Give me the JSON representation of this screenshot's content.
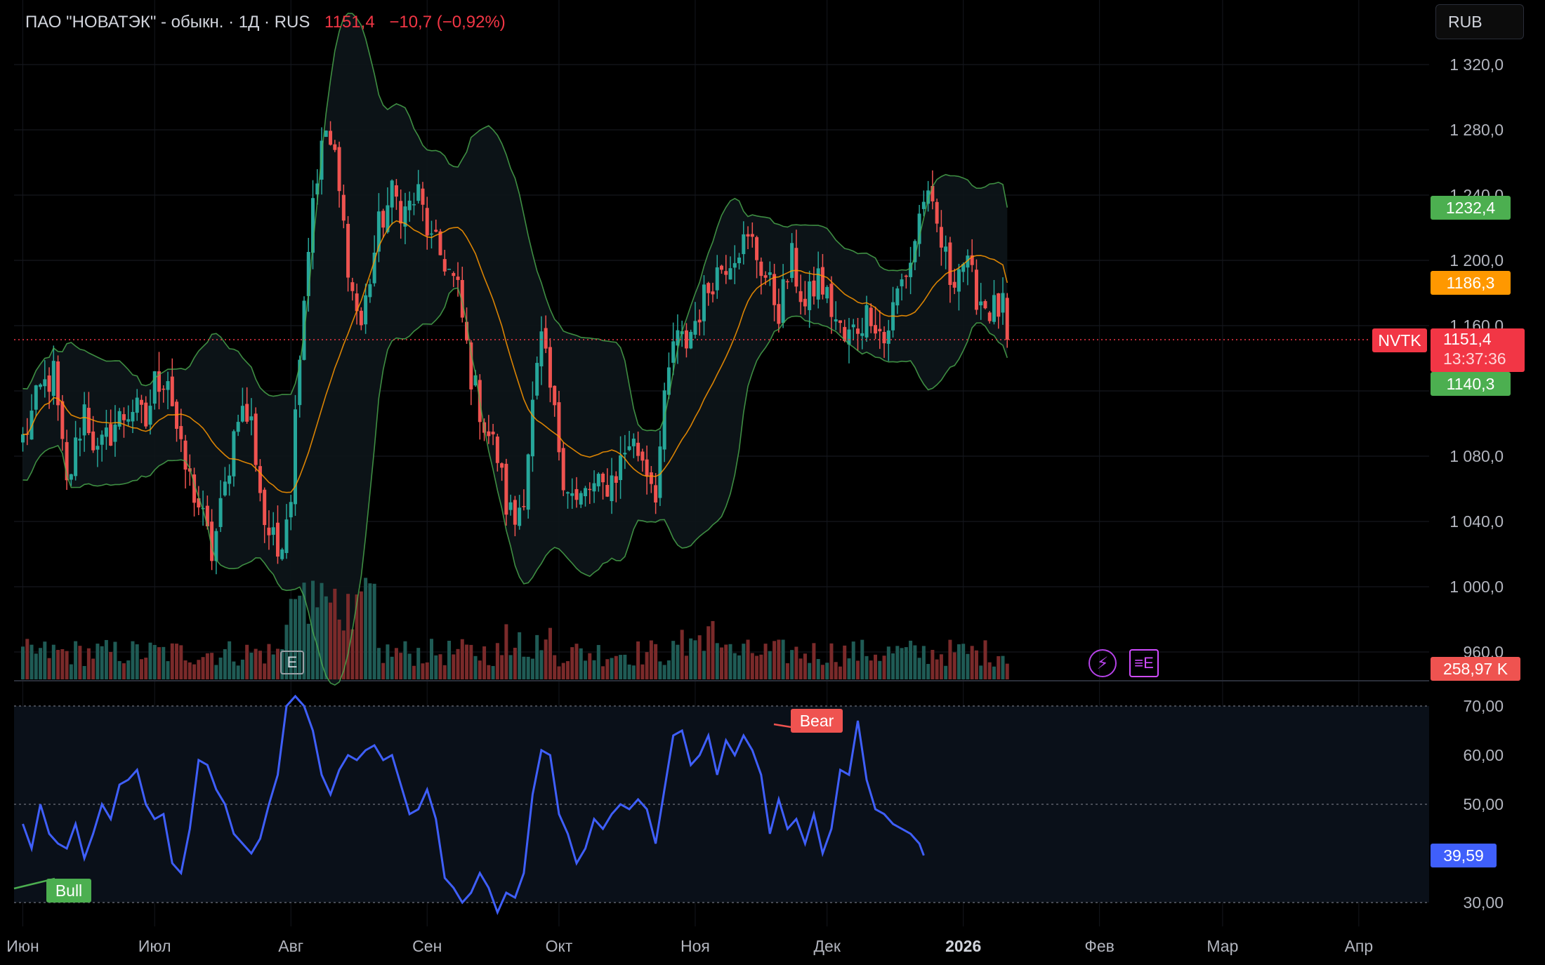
{
  "header": {
    "symbol": "ПАО \"НОВАТЭК\" - обыкн. · 1Д · RUS",
    "price": "1151,4",
    "change": "−10,7 (−0,92%)"
  },
  "currency_button": "RUB",
  "price_tags": {
    "ticker": "NVTK",
    "last": "1151,4",
    "countdown": "13:37:36",
    "bb_upper": "1232,4",
    "sma": "1186,3",
    "bb_lower": "1140,3",
    "volume": "258,97 K",
    "rsi": "39,59"
  },
  "markers": {
    "bull": "Bull",
    "bear": "Bear",
    "earnings": "E"
  },
  "colors": {
    "up": "#26a69a",
    "down": "#ef5350",
    "bb_line": "#4caf50",
    "sma": "#ff9800",
    "rsi": "#3f5ffb",
    "last_price": "#f23645"
  },
  "chart_data": [
    {
      "type": "candlestick",
      "title": "ПАО \"НОВАТЭК\" - обыкн. · 1Д · RUS",
      "y_ticks": [
        1320,
        1280,
        1240,
        1200,
        1160,
        1080,
        1040,
        1000,
        960
      ],
      "y_tick_labels": [
        "1 320,0",
        "1 280,0",
        "1 240,0",
        "1 200,0",
        "1 160,0",
        "1 080,0",
        "1 040,0",
        "1 000,0",
        "960,0"
      ],
      "ylim": [
        945,
        1340
      ],
      "x_tick_labels": [
        "Июн",
        "Июл",
        "Авг",
        "Сен",
        "Окт",
        "Ноя",
        "Дек",
        "2026",
        "Фев",
        "Мар",
        "Апр"
      ],
      "x_tick_days": [
        0,
        30,
        61,
        92,
        122,
        153,
        183,
        214,
        245,
        273,
        304
      ],
      "xlim_days": [
        -2,
        320
      ],
      "close_anchors": [
        [
          0,
          1090
        ],
        [
          4,
          1120
        ],
        [
          7,
          1130
        ],
        [
          10,
          1060
        ],
        [
          14,
          1110
        ],
        [
          17,
          1080
        ],
        [
          21,
          1100
        ],
        [
          25,
          1110
        ],
        [
          28,
          1100
        ],
        [
          30,
          1125
        ],
        [
          33,
          1130
        ],
        [
          36,
          1080
        ],
        [
          40,
          1050
        ],
        [
          43,
          1020
        ],
        [
          46,
          1060
        ],
        [
          49,
          1110
        ],
        [
          52,
          1100
        ],
        [
          55,
          1040
        ],
        [
          58,
          1020
        ],
        [
          61,
          1060
        ],
        [
          63,
          1150
        ],
        [
          66,
          1240
        ],
        [
          69,
          1280
        ],
        [
          71,
          1260
        ],
        [
          73,
          1220
        ],
        [
          75,
          1180
        ],
        [
          77,
          1160
        ],
        [
          79,
          1190
        ],
        [
          81,
          1220
        ],
        [
          84,
          1240
        ],
        [
          87,
          1230
        ],
        [
          90,
          1240
        ],
        [
          93,
          1210
        ],
        [
          96,
          1200
        ],
        [
          99,
          1180
        ],
        [
          102,
          1130
        ],
        [
          105,
          1100
        ],
        [
          108,
          1080
        ],
        [
          110,
          1050
        ],
        [
          112,
          1040
        ],
        [
          114,
          1060
        ],
        [
          116,
          1110
        ],
        [
          118,
          1150
        ],
        [
          120,
          1120
        ],
        [
          123,
          1070
        ],
        [
          126,
          1050
        ],
        [
          129,
          1060
        ],
        [
          132,
          1060
        ],
        [
          135,
          1070
        ],
        [
          138,
          1090
        ],
        [
          141,
          1080
        ],
        [
          144,
          1060
        ],
        [
          146,
          1110
        ],
        [
          148,
          1150
        ],
        [
          151,
          1150
        ],
        [
          154,
          1170
        ],
        [
          157,
          1190
        ],
        [
          160,
          1200
        ],
        [
          163,
          1210
        ],
        [
          166,
          1210
        ],
        [
          169,
          1190
        ],
        [
          172,
          1170
        ],
        [
          175,
          1200
        ],
        [
          178,
          1170
        ],
        [
          181,
          1190
        ],
        [
          184,
          1170
        ],
        [
          187,
          1150
        ],
        [
          190,
          1160
        ],
        [
          193,
          1170
        ],
        [
          196,
          1150
        ],
        [
          199,
          1180
        ],
        [
          202,
          1200
        ],
        [
          205,
          1240
        ],
        [
          208,
          1220
        ],
        [
          211,
          1190
        ],
        [
          214,
          1200
        ],
        [
          217,
          1180
        ],
        [
          220,
          1170
        ],
        [
          223,
          1170
        ],
        [
          224,
          1151.4
        ]
      ],
      "last_price": 1151.4,
      "bollinger_upper_last": 1232.4,
      "sma_last": 1186.3,
      "bollinger_lower_last": 1140.3,
      "volume_last": "258,97 K"
    },
    {
      "type": "line",
      "name": "RSI",
      "y_ticks": [
        70,
        60,
        50,
        30
      ],
      "y_tick_labels": [
        "70,00",
        "60,00",
        "50,00",
        "30,00"
      ],
      "ylim": [
        26,
        74
      ],
      "band": [
        30,
        70
      ],
      "midline": 50,
      "points": [
        [
          0,
          46
        ],
        [
          2,
          41
        ],
        [
          4,
          50
        ],
        [
          6,
          44
        ],
        [
          8,
          42
        ],
        [
          10,
          41
        ],
        [
          12,
          46
        ],
        [
          14,
          39
        ],
        [
          16,
          44
        ],
        [
          18,
          50
        ],
        [
          20,
          47
        ],
        [
          22,
          54
        ],
        [
          24,
          55
        ],
        [
          26,
          57
        ],
        [
          28,
          50
        ],
        [
          30,
          47
        ],
        [
          32,
          48
        ],
        [
          34,
          38
        ],
        [
          36,
          36
        ],
        [
          38,
          45
        ],
        [
          40,
          59
        ],
        [
          42,
          58
        ],
        [
          44,
          53
        ],
        [
          46,
          50
        ],
        [
          48,
          44
        ],
        [
          50,
          42
        ],
        [
          52,
          40
        ],
        [
          54,
          43
        ],
        [
          56,
          50
        ],
        [
          58,
          56
        ],
        [
          60,
          70
        ],
        [
          62,
          72
        ],
        [
          64,
          70
        ],
        [
          66,
          65
        ],
        [
          68,
          56
        ],
        [
          70,
          52
        ],
        [
          72,
          57
        ],
        [
          74,
          60
        ],
        [
          76,
          59
        ],
        [
          78,
          61
        ],
        [
          80,
          62
        ],
        [
          82,
          59
        ],
        [
          84,
          60
        ],
        [
          86,
          54
        ],
        [
          88,
          48
        ],
        [
          90,
          49
        ],
        [
          92,
          53
        ],
        [
          94,
          47
        ],
        [
          96,
          35
        ],
        [
          98,
          33
        ],
        [
          100,
          30
        ],
        [
          102,
          32
        ],
        [
          104,
          36
        ],
        [
          106,
          33
        ],
        [
          108,
          28
        ],
        [
          110,
          32
        ],
        [
          112,
          31
        ],
        [
          114,
          36
        ],
        [
          116,
          52
        ],
        [
          118,
          61
        ],
        [
          120,
          60
        ],
        [
          122,
          48
        ],
        [
          124,
          44
        ],
        [
          126,
          38
        ],
        [
          128,
          41
        ],
        [
          130,
          47
        ],
        [
          132,
          45
        ],
        [
          134,
          48
        ],
        [
          136,
          50
        ],
        [
          138,
          49
        ],
        [
          140,
          51
        ],
        [
          142,
          49
        ],
        [
          144,
          42
        ],
        [
          146,
          53
        ],
        [
          148,
          64
        ],
        [
          150,
          65
        ],
        [
          152,
          58
        ],
        [
          154,
          60
        ],
        [
          156,
          64
        ],
        [
          158,
          56
        ],
        [
          160,
          63
        ],
        [
          162,
          60
        ],
        [
          164,
          64
        ],
        [
          166,
          61
        ],
        [
          168,
          56
        ],
        [
          170,
          44
        ],
        [
          172,
          51
        ],
        [
          174,
          45
        ],
        [
          176,
          47
        ],
        [
          178,
          42
        ],
        [
          180,
          48
        ],
        [
          182,
          40
        ],
        [
          184,
          45
        ],
        [
          186,
          57
        ],
        [
          188,
          56
        ],
        [
          190,
          67
        ],
        [
          192,
          55
        ],
        [
          194,
          49
        ],
        [
          196,
          48
        ],
        [
          198,
          46
        ],
        [
          200,
          45
        ],
        [
          202,
          44
        ],
        [
          204,
          42
        ],
        [
          205,
          39.59
        ]
      ],
      "last_value": 39.59
    }
  ]
}
